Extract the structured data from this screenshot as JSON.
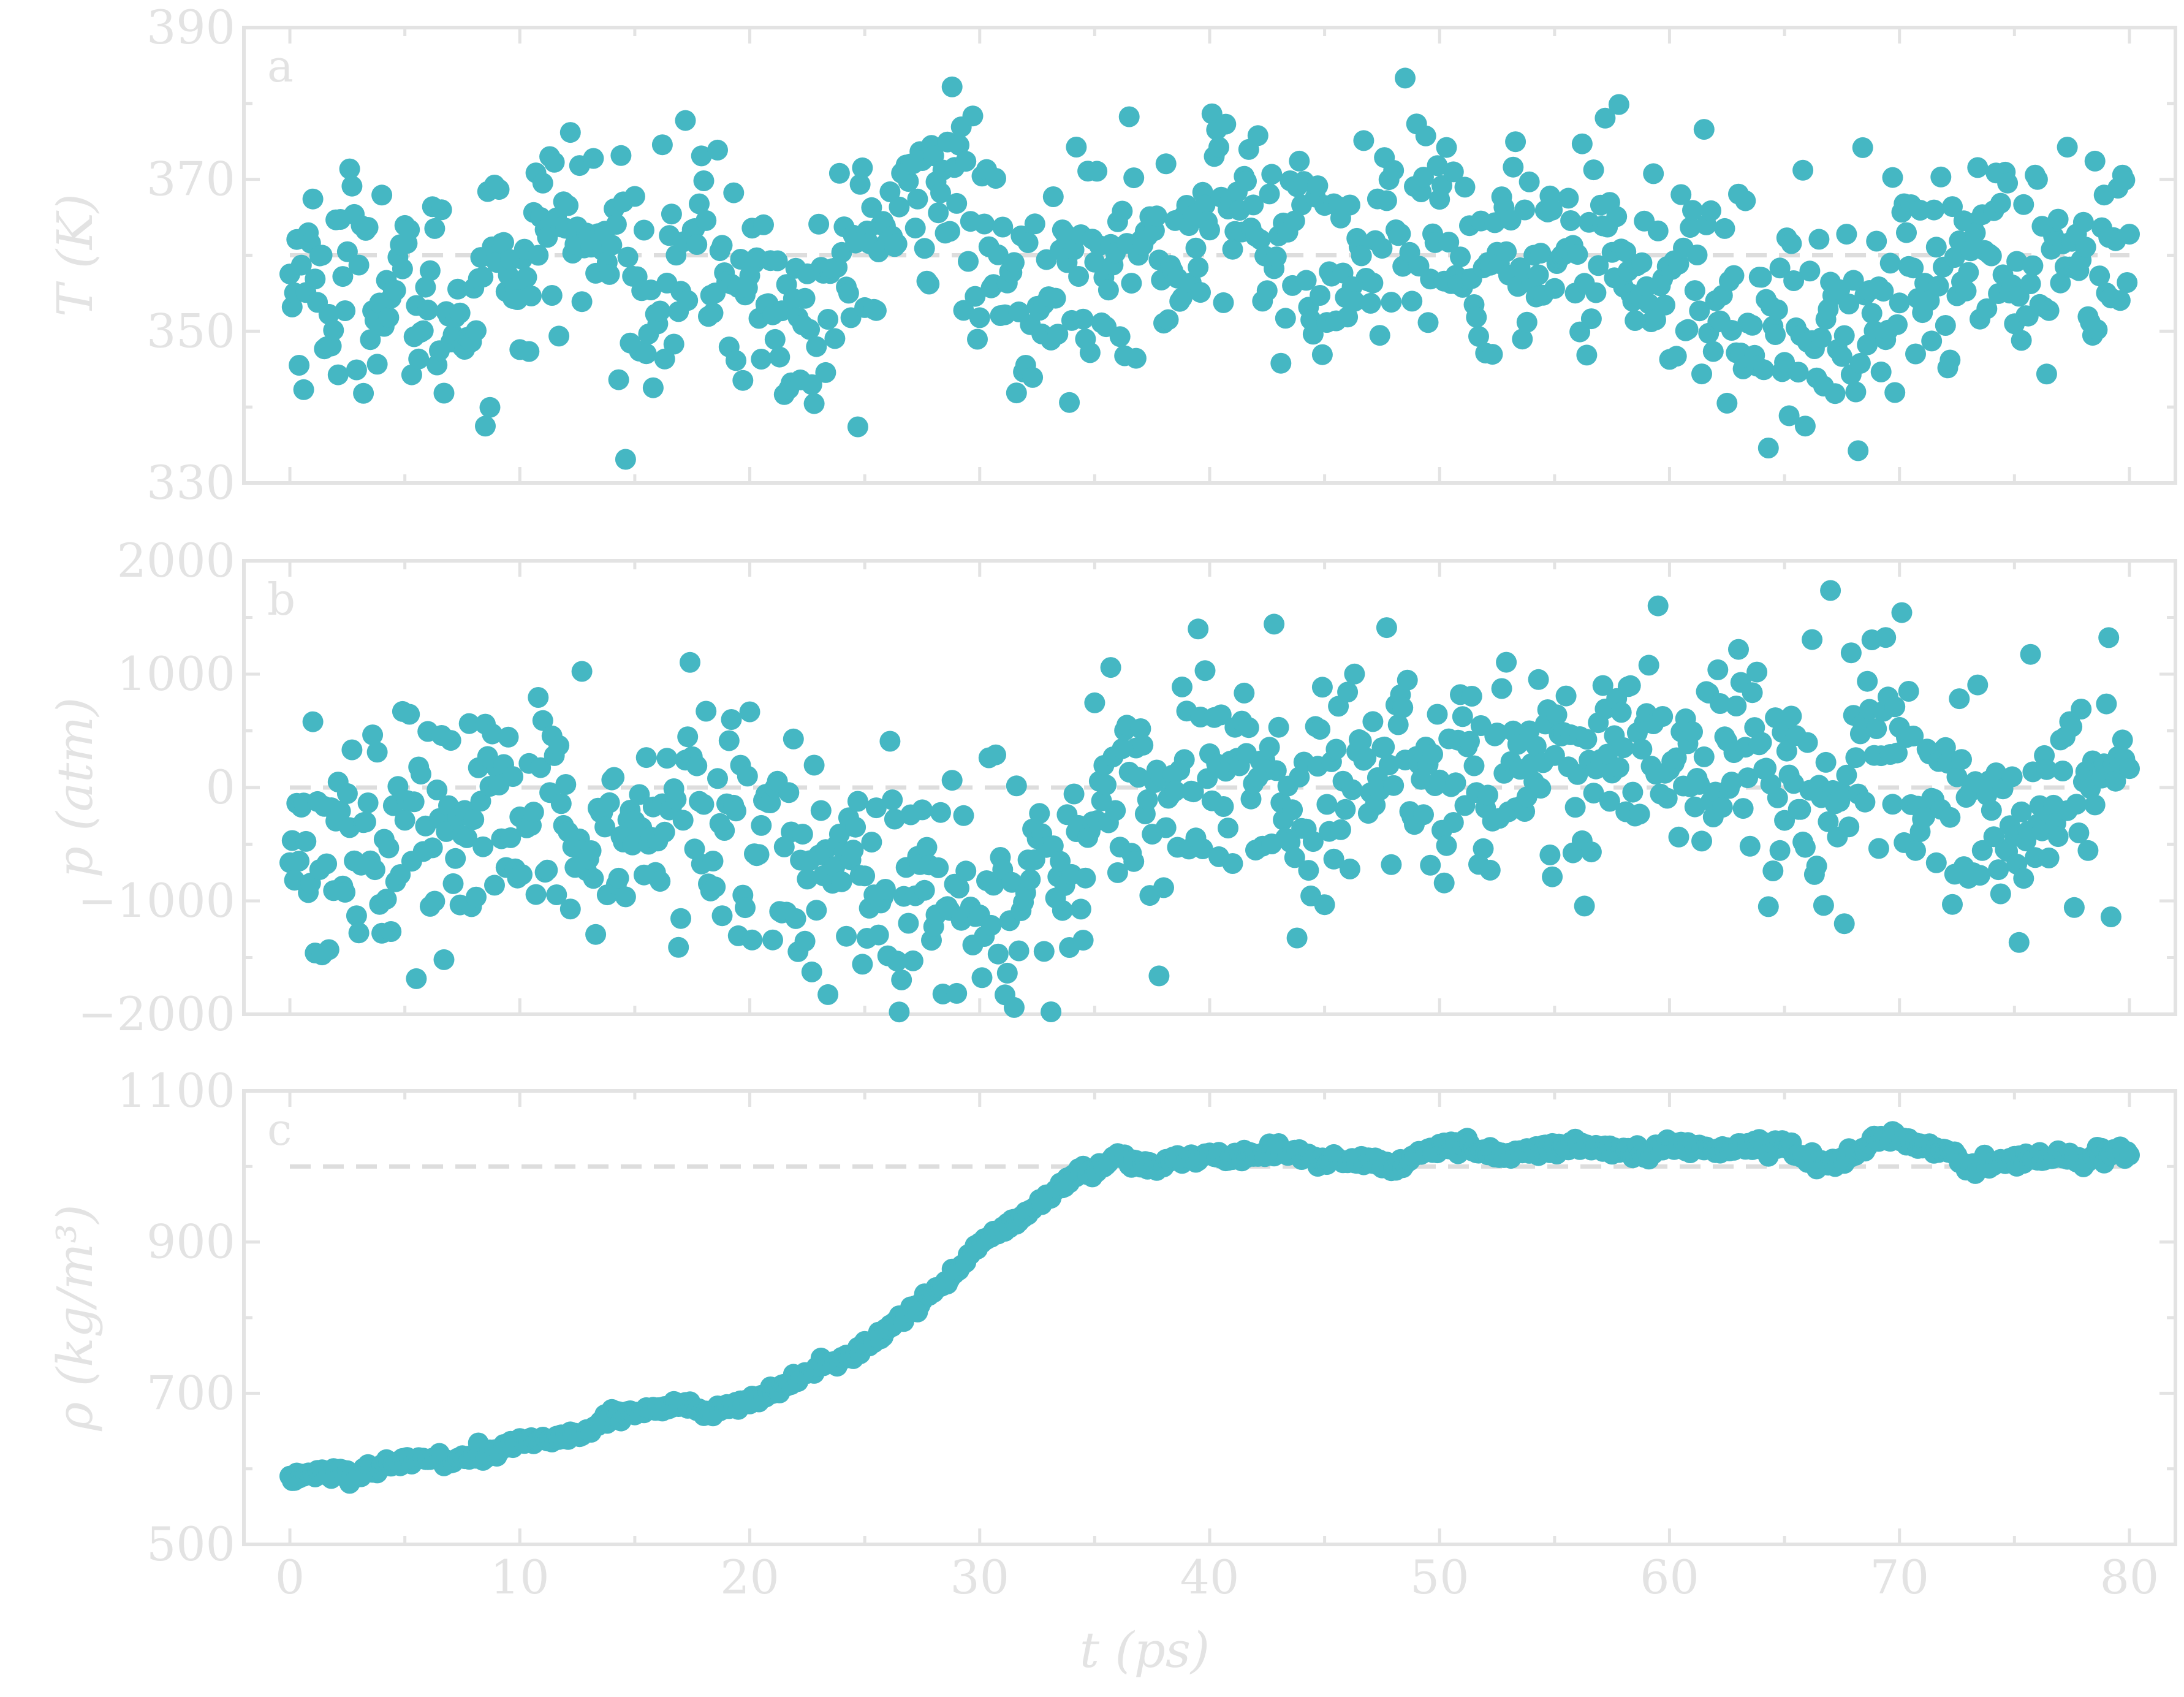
{
  "figure": {
    "colors": {
      "marker": "#45b7c3",
      "frame": "#e3e3e3",
      "reference_line": "#dddddd",
      "text": "#e3e3e3",
      "background": "#ffffff"
    },
    "xlabel": "t (ps)",
    "x_tick_labels": [
      "0",
      "10",
      "20",
      "30",
      "40",
      "50",
      "60",
      "70",
      "80"
    ]
  },
  "chart_data": [
    {
      "type": "scatter",
      "panel_label": "a",
      "ylabel": "T (K)",
      "xlim": [
        -2,
        82
      ],
      "ylim": [
        330,
        390
      ],
      "y_tick_labels": [
        "330",
        "350",
        "370",
        "390"
      ],
      "reference_line": 360,
      "series": [
        {
          "x": [
            0,
            1,
            2,
            3,
            4,
            5,
            6,
            7,
            8,
            9,
            10,
            11,
            12,
            13,
            14,
            15,
            16,
            17,
            18,
            19,
            20,
            21,
            22,
            23,
            24,
            25,
            26,
            27,
            28,
            29,
            30,
            31,
            32,
            33,
            34,
            35,
            36,
            37,
            38,
            39,
            40,
            41,
            42,
            43,
            44,
            45,
            46,
            47,
            48,
            49,
            50,
            51,
            52,
            53,
            54,
            55,
            56,
            57,
            58,
            59,
            60,
            61,
            62,
            63,
            64,
            65,
            66,
            67,
            68,
            69,
            70,
            71,
            72,
            73,
            74,
            75,
            76,
            77,
            78,
            79,
            80
          ],
          "y": [
            356,
            358,
            354,
            360,
            357,
            353,
            355,
            352,
            354,
            361,
            358,
            362,
            365,
            362,
            360,
            356,
            357,
            359,
            362,
            358,
            356,
            353,
            350,
            352,
            356,
            360,
            363,
            365,
            372,
            369,
            360,
            356,
            352,
            354,
            359,
            362,
            364,
            360,
            359,
            363,
            366,
            367,
            365,
            362,
            360,
            358,
            359,
            361,
            362,
            363,
            362,
            360,
            358,
            359,
            362,
            363,
            361,
            363,
            364,
            360,
            357,
            359,
            356,
            354,
            352,
            351,
            350,
            352,
            354,
            356,
            356,
            358,
            357,
            360,
            362,
            357,
            355,
            356,
            357,
            359,
            360
          ]
        }
      ]
    },
    {
      "type": "scatter",
      "panel_label": "b",
      "ylabel": "p (atm)",
      "xlim": [
        -2,
        82
      ],
      "ylim": [
        -2000,
        2000
      ],
      "y_tick_labels": [
        "−2000",
        "−1000",
        "0",
        "1000",
        "2000"
      ],
      "reference_line": 0,
      "series": [
        {
          "x": [
            0,
            1,
            2,
            3,
            4,
            5,
            6,
            7,
            8,
            9,
            10,
            11,
            12,
            13,
            14,
            15,
            16,
            17,
            18,
            19,
            20,
            21,
            22,
            23,
            24,
            25,
            26,
            27,
            28,
            29,
            30,
            31,
            32,
            33,
            34,
            35,
            36,
            37,
            38,
            39,
            40,
            41,
            42,
            43,
            44,
            45,
            46,
            47,
            48,
            49,
            50,
            51,
            52,
            53,
            54,
            55,
            56,
            57,
            58,
            59,
            60,
            61,
            62,
            63,
            64,
            65,
            66,
            67,
            68,
            69,
            70,
            71,
            72,
            73,
            74,
            75,
            76,
            77,
            78,
            79,
            80
          ],
          "y": [
            -300,
            -400,
            -500,
            -400,
            -450,
            -350,
            -250,
            -500,
            -350,
            -250,
            -300,
            -350,
            -250,
            -350,
            -450,
            -500,
            -400,
            -250,
            -300,
            -350,
            -450,
            -550,
            -600,
            -550,
            -500,
            -650,
            -800,
            -900,
            -950,
            -1000,
            -1050,
            -950,
            -800,
            -800,
            -600,
            -300,
            0,
            100,
            -100,
            200,
            200,
            300,
            100,
            0,
            -150,
            100,
            200,
            200,
            100,
            150,
            200,
            200,
            300,
            100,
            200,
            300,
            0,
            300,
            400,
            350,
            300,
            200,
            250,
            350,
            400,
            200,
            100,
            300,
            200,
            400,
            350,
            200,
            -100,
            -200,
            -400,
            -500,
            -300,
            0,
            200,
            300,
            350
          ]
        }
      ]
    },
    {
      "type": "scatter",
      "panel_label": "c",
      "ylabel": "ρ (kg/m³)",
      "xlim": [
        -2,
        82
      ],
      "ylim": [
        500,
        1100
      ],
      "y_tick_labels": [
        "500",
        "700",
        "900",
        "1100"
      ],
      "reference_line": 1000,
      "series": [
        {
          "x": [
            0,
            1,
            2,
            3,
            4,
            5,
            6,
            7,
            8,
            9,
            10,
            11,
            12,
            13,
            14,
            15,
            16,
            17,
            18,
            19,
            20,
            21,
            22,
            23,
            24,
            25,
            26,
            27,
            28,
            29,
            30,
            31,
            32,
            33,
            34,
            35,
            36,
            37,
            38,
            39,
            40,
            41,
            42,
            43,
            44,
            45,
            46,
            47,
            48,
            49,
            50,
            51,
            52,
            53,
            54,
            55,
            56,
            57,
            58,
            59,
            60,
            61,
            62,
            63,
            64,
            65,
            66,
            67,
            68,
            69,
            70,
            71,
            72,
            73,
            74,
            75,
            76,
            77,
            78,
            79,
            80
          ],
          "y": [
            590,
            593,
            595,
            592,
            600,
            610,
            615,
            612,
            615,
            622,
            635,
            640,
            642,
            650,
            673,
            675,
            680,
            685,
            675,
            680,
            688,
            700,
            718,
            735,
            745,
            760,
            785,
            808,
            835,
            865,
            895,
            915,
            938,
            960,
            985,
            995,
            1015,
            1000,
            1005,
            1010,
            1015,
            1012,
            1015,
            1020,
            1018,
            1010,
            1005,
            1008,
            1000,
            1015,
            1025,
            1030,
            1020,
            1015,
            1020,
            1025,
            1030,
            1025,
            1020,
            1018,
            1025,
            1030,
            1022,
            1025,
            1030,
            1028,
            1010,
            1005,
            1015,
            1040,
            1035,
            1025,
            1020,
            1000,
            1005,
            1010,
            1012,
            1015,
            1005,
            1020,
            1020
          ]
        }
      ]
    }
  ]
}
